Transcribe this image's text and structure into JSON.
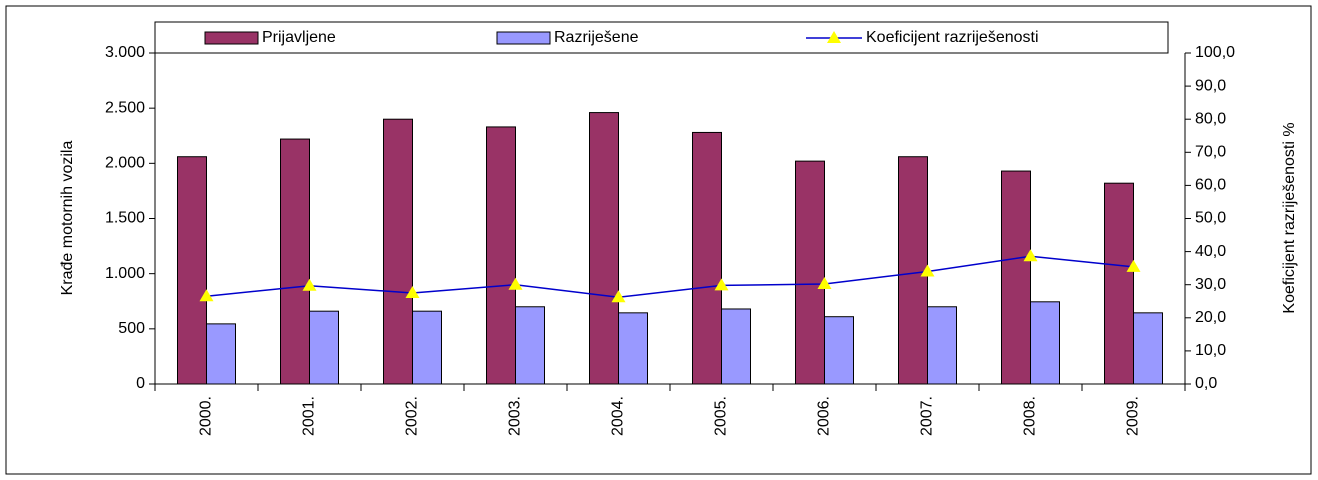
{
  "chart_data": {
    "type": "bar_line",
    "categories": [
      "2000.",
      "2001.",
      "2002.",
      "2003.",
      "2004.",
      "2005.",
      "2006.",
      "2007.",
      "2008.",
      "2009."
    ],
    "series": [
      {
        "name": "Prijavljene",
        "color": "#993366",
        "values": [
          2060,
          2220,
          2400,
          2330,
          2460,
          2280,
          2020,
          2060,
          1930,
          1820
        ]
      },
      {
        "name": "Razriješene",
        "color": "#9999FF",
        "values": [
          545,
          660,
          660,
          700,
          645,
          680,
          610,
          700,
          745,
          645
        ]
      },
      {
        "name": "Koeficijent razriješenosti",
        "color": "#0000CC",
        "marker_color": "#FFFF00",
        "axis": "y2",
        "values": [
          26.5,
          29.7,
          27.5,
          30.0,
          26.2,
          29.8,
          30.2,
          34.0,
          38.6,
          35.4
        ]
      }
    ],
    "ylabel": "Krađe motornih vozila",
    "y2label": "Koeficijent razriješenosti %",
    "ylim": [
      0,
      3000
    ],
    "yticks": [
      0,
      500,
      {
        "value": 1000,
        "label": "1.000"
      },
      {
        "value": 1500,
        "label": "1.500"
      },
      {
        "value": 2000,
        "label": "2.000"
      },
      {
        "value": 2500,
        "label": "2.500"
      },
      {
        "value": 3000,
        "label": "3.000"
      }
    ],
    "y2lim": [
      0,
      100
    ],
    "y2ticks": [
      {
        "value": 0,
        "label": "0,0"
      },
      {
        "value": 10,
        "label": "10,0"
      },
      {
        "value": 20,
        "label": "20,0"
      },
      {
        "value": 30,
        "label": "30,0"
      },
      {
        "value": 40,
        "label": "40,0"
      },
      {
        "value": 50,
        "label": "50,0"
      },
      {
        "value": 60,
        "label": "60,0"
      },
      {
        "value": 70,
        "label": "70,0"
      },
      {
        "value": 80,
        "label": "80,0"
      },
      {
        "value": 90,
        "label": "90,0"
      },
      {
        "value": 100,
        "label": "100,0"
      }
    ],
    "legend": "top"
  }
}
